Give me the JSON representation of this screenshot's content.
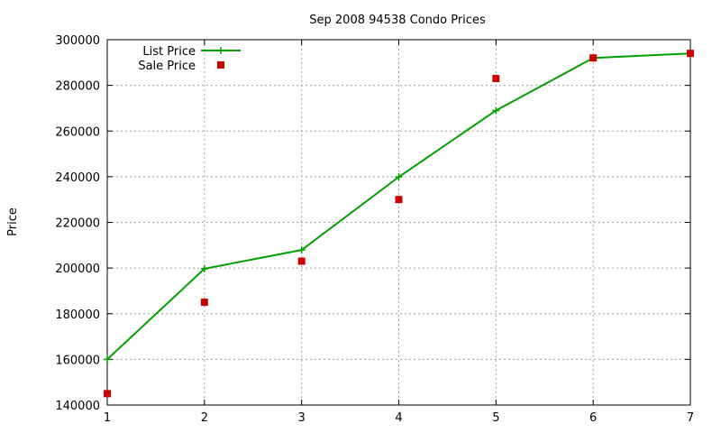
{
  "chart_data": {
    "type": "line",
    "title": "Sep 2008 94538 Condo Prices",
    "xlabel": "",
    "ylabel": "Price",
    "x": [
      1,
      2,
      3,
      4,
      5,
      6,
      7
    ],
    "xlim": [
      1,
      7
    ],
    "ylim": [
      140000,
      300000
    ],
    "xticks": [
      1,
      2,
      3,
      4,
      5,
      6,
      7
    ],
    "yticks": [
      140000,
      160000,
      180000,
      200000,
      220000,
      240000,
      260000,
      280000,
      300000
    ],
    "grid": true,
    "legend_position": "top-left",
    "series": [
      {
        "name": "List Price",
        "style": "line-with-plus-markers",
        "color": "#00a000",
        "values": [
          160000,
          199700,
          207900,
          239900,
          269000,
          292000,
          294000
        ]
      },
      {
        "name": "Sale Price",
        "style": "square-markers",
        "color": "#cc0000",
        "values": [
          145000,
          185000,
          203000,
          230000,
          283000,
          292000,
          294000
        ]
      }
    ]
  }
}
